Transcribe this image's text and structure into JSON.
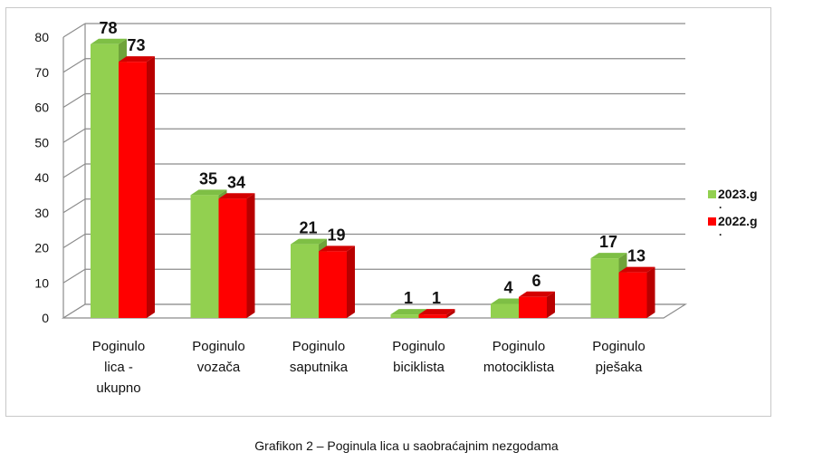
{
  "chart_data": {
    "type": "bar",
    "categories": [
      [
        "Poginulo",
        "lica -",
        "ukupno"
      ],
      [
        "Poginulo",
        "vozača"
      ],
      [
        "Poginulo",
        "saputnika"
      ],
      [
        "Poginulo",
        "biciklista"
      ],
      [
        "Poginulo",
        "motociklista"
      ],
      [
        "Poginulo",
        "pješaka"
      ]
    ],
    "series": [
      {
        "name": "2023.g",
        "values": [
          78,
          35,
          21,
          1,
          4,
          17
        ],
        "color": "#92d050",
        "side": "#6fa33a",
        "top": "#7ebf45"
      },
      {
        "name": "2022.g",
        "values": [
          73,
          34,
          19,
          1,
          6,
          13
        ],
        "color": "#ff0000",
        "side": "#b80000",
        "top": "#d40000"
      }
    ],
    "yticks": [
      0,
      10,
      20,
      30,
      40,
      50,
      60,
      70,
      80
    ],
    "ylim": [
      0,
      80
    ],
    "grid": true,
    "style": "3d-clustered-column",
    "legend_position": "right"
  },
  "legend": {
    "items": [
      {
        "label": "2023.g",
        "continuation": "."
      },
      {
        "label": "2022.g",
        "continuation": "."
      }
    ]
  },
  "caption": "Grafikon 2 – Poginula lica u saobraćajnim nezgodama"
}
